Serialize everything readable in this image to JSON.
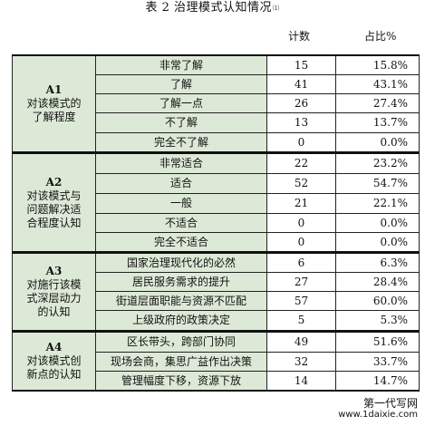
{
  "caption": {
    "text": "表 2  治理模式认知情况",
    "note": "⑴"
  },
  "headers": {
    "count": "计数",
    "percent": "占比%"
  },
  "groups": [
    {
      "id": "A1",
      "label_lines": [
        "对该模式的",
        "了解程度"
      ],
      "rows": [
        {
          "item": "非常了解",
          "count": "15",
          "percent": "15.8%"
        },
        {
          "item": "了解",
          "count": "41",
          "percent": "43.1%"
        },
        {
          "item": "了解一点",
          "count": "26",
          "percent": "27.4%"
        },
        {
          "item": "不了解",
          "count": "13",
          "percent": "13.7%"
        },
        {
          "item": "完全不了解",
          "count": "0",
          "percent": "0.0%"
        }
      ]
    },
    {
      "id": "A2",
      "label_lines": [
        "对该模式与",
        "问题解决适",
        "合程度认知"
      ],
      "rows": [
        {
          "item": "非常适合",
          "count": "22",
          "percent": "23.2%"
        },
        {
          "item": "适合",
          "count": "52",
          "percent": "54.7%"
        },
        {
          "item": "一般",
          "count": "21",
          "percent": "22.1%"
        },
        {
          "item": "不适合",
          "count": "0",
          "percent": "0.0%"
        },
        {
          "item": "完全不适合",
          "count": "0",
          "percent": "0.0%"
        }
      ]
    },
    {
      "id": "A3",
      "label_lines": [
        "对施行该模",
        "式深层动力",
        "的认知"
      ],
      "rows": [
        {
          "item": "国家治理现代化的必然",
          "count": "6",
          "percent": "6.3%"
        },
        {
          "item": "居民服务需求的提升",
          "count": "27",
          "percent": "28.4%"
        },
        {
          "item": "街道层面职能与资源不匹配",
          "count": "57",
          "percent": "60.0%"
        },
        {
          "item": "上级政府的政策决定",
          "count": "5",
          "percent": "5.3%"
        }
      ]
    },
    {
      "id": "A4",
      "label_lines": [
        "对该模式创",
        "新点的认知"
      ],
      "rows": [
        {
          "item": "区长带头，跨部门协同",
          "count": "49",
          "percent": "51.6%"
        },
        {
          "item": "现场会商，集思广益作出决策",
          "count": "32",
          "percent": "33.7%"
        },
        {
          "item": "管理幅度下移，资源下放",
          "count": "14",
          "percent": "14.7%"
        }
      ]
    }
  ],
  "watermark": {
    "line1": "第一代写网",
    "line2": "www.1daixie.com"
  }
}
